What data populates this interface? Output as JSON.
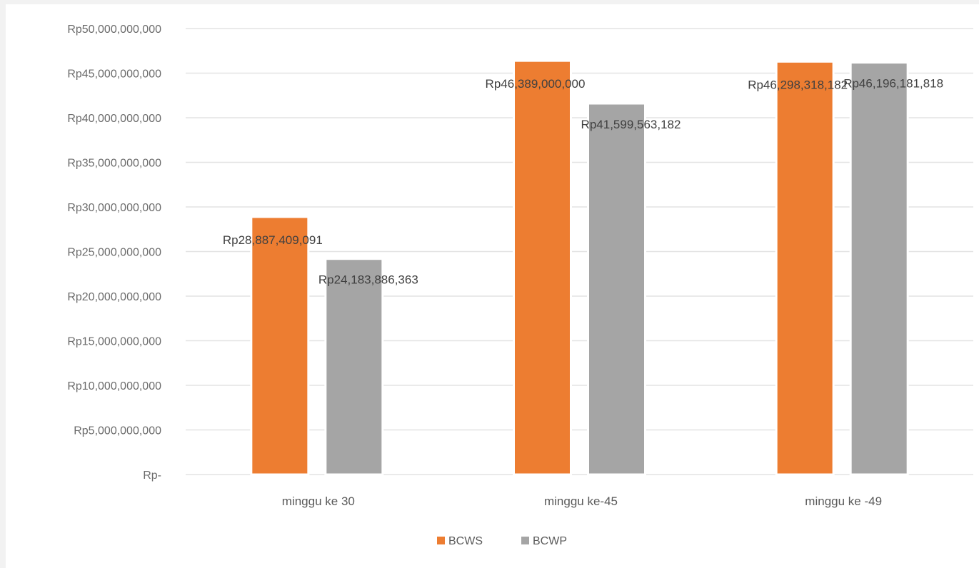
{
  "chart_data": {
    "type": "bar",
    "title": "",
    "xlabel": "",
    "ylabel": "",
    "categories": [
      "minggu ke 30",
      "minggu ke-45",
      "minggu ke -49"
    ],
    "series": [
      {
        "name": "BCWS",
        "color": "#ed7d31",
        "values": [
          28887409091,
          46389000000,
          46298318182
        ],
        "labels": [
          "Rp28,887,409,091",
          "Rp46,389,000,000",
          "Rp46,298,318,182"
        ]
      },
      {
        "name": "BCWP",
        "color": "#a5a5a5",
        "values": [
          24183886363,
          41599563182,
          46196181818
        ],
        "labels": [
          "Rp24,183,886,363",
          "Rp41,599,563,182",
          "Rp46,196,181,818"
        ]
      }
    ],
    "ylim": [
      0,
      50000000000
    ],
    "yticks": [
      0,
      5000000000,
      10000000000,
      15000000000,
      20000000000,
      25000000000,
      30000000000,
      35000000000,
      40000000000,
      45000000000,
      50000000000
    ],
    "ytick_labels": [
      "Rp-",
      "Rp5,000,000,000",
      "Rp10,000,000,000",
      "Rp15,000,000,000",
      "Rp20,000,000,000",
      "Rp25,000,000,000",
      "Rp30,000,000,000",
      "Rp35,000,000,000",
      "Rp40,000,000,000",
      "Rp45,000,000,000",
      "Rp50,000,000,000"
    ],
    "grid": true,
    "legend": "bottom"
  }
}
